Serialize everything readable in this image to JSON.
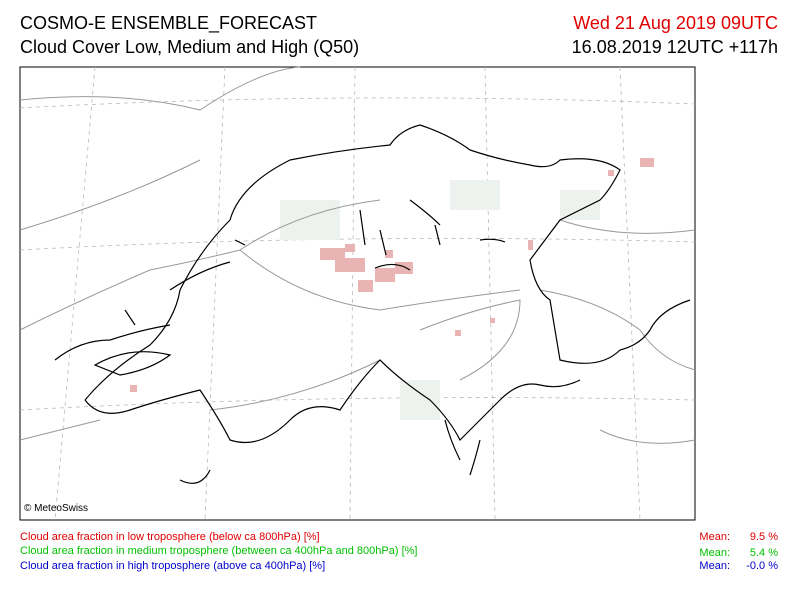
{
  "header": {
    "title": "COSMO-E ENSEMBLE_FORECAST",
    "subtitle": "Cloud Cover Low, Medium and High (Q50)",
    "valid_time": "Wed 21 Aug 2019 09UTC",
    "run_time": "16.08.2019 12UTC +117h"
  },
  "map": {
    "credit": "© MeteoSwiss"
  },
  "legend": {
    "rows": [
      {
        "label": "Cloud area fraction in low troposphere (below ca 800hPa) [%]",
        "mean_label": "Mean:",
        "mean": "9.5 %"
      },
      {
        "label": "Cloud area fraction in medium troposphere (between ca 400hPa and 800hPa) [%]",
        "mean_label": "Mean:",
        "mean": "5.4 %"
      },
      {
        "label": "Cloud area fraction in high troposphere (above ca 400hPa) [%]",
        "mean_label": "Mean:",
        "mean": "-0.0 %"
      }
    ]
  }
}
